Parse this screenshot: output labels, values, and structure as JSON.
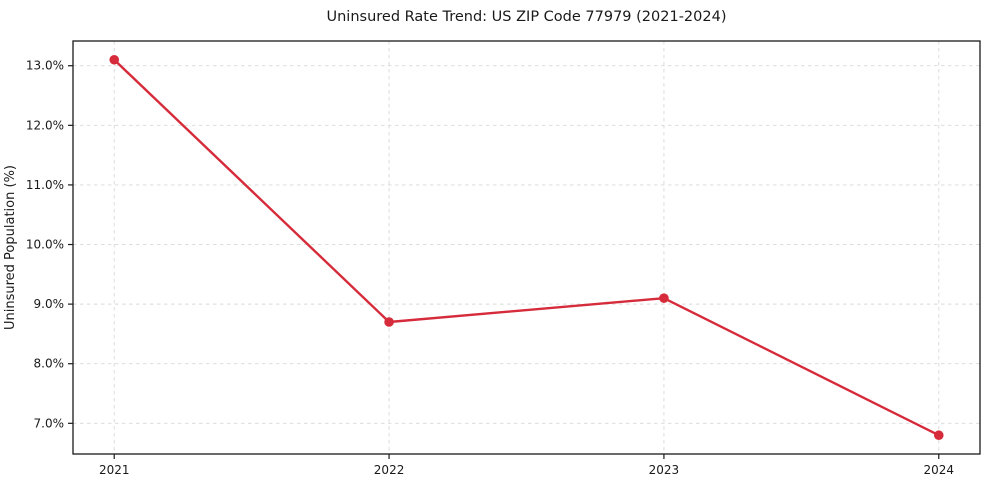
{
  "page": {
    "background": "#ffffff"
  },
  "chart_data": {
    "type": "line",
    "title": "Uninsured Rate Trend: US ZIP Code 77979 (2021-2024)",
    "xlabel": "",
    "ylabel": "Uninsured Population (%)",
    "x": [
      2021,
      2022,
      2023,
      2024
    ],
    "series": [
      {
        "name": "Uninsured Rate",
        "values": [
          13.1,
          8.7,
          9.1,
          6.8
        ],
        "unit": "%"
      }
    ],
    "xtick_labels": [
      "2021",
      "2022",
      "2023",
      "2024"
    ],
    "ytick_values": [
      7,
      8,
      9,
      10,
      11,
      12,
      13
    ],
    "ytick_labels": [
      "7.0%",
      "8.0%",
      "9.0%",
      "10.0%",
      "11.0%",
      "12.0%",
      "13.0%"
    ],
    "xlim": [
      2020.85,
      2024.15
    ],
    "ylim": [
      6.485,
      13.415
    ],
    "grid": true,
    "grid_style": "dashed",
    "legend": "none",
    "colors": {
      "line": "#d62b3a",
      "marker": "#d62b3a",
      "grid": "#d2d2d2",
      "spine": "#1a1a1a",
      "tick": "#1a1a1a",
      "background": "#ffffff"
    },
    "marker": "circle"
  }
}
